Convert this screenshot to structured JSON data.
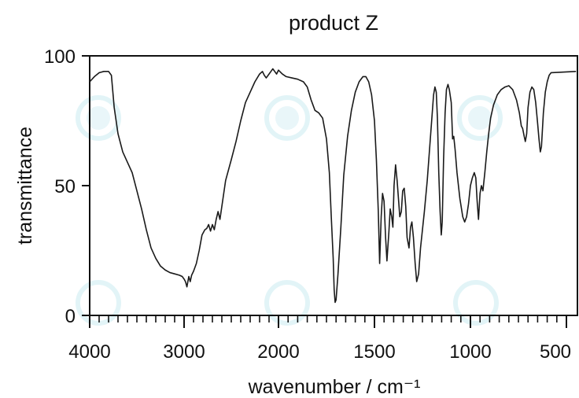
{
  "chart_data": {
    "type": "line",
    "title": "product Z",
    "xlabel": "wavenumber / cm⁻¹",
    "ylabel": "transmittance",
    "xlim": [
      4000,
      450
    ],
    "ylim": [
      0,
      100
    ],
    "x_ticks": [
      4000,
      3000,
      2000,
      1500,
      1000,
      500
    ],
    "x_tick_labels": [
      "4000",
      "3000",
      "2000",
      "1500",
      "1000",
      "500"
    ],
    "y_ticks": [
      0,
      50,
      100
    ],
    "y_tick_labels": [
      "0",
      "50",
      "100"
    ],
    "grid": false,
    "series": [
      {
        "color": "#1a1a1a",
        "points": [
          [
            4000,
            90
          ],
          [
            3950,
            92
          ],
          [
            3900,
            93.5
          ],
          [
            3850,
            94
          ],
          [
            3800,
            94
          ],
          [
            3770,
            92.5
          ],
          [
            3740,
            80
          ],
          [
            3700,
            70
          ],
          [
            3650,
            63
          ],
          [
            3600,
            59
          ],
          [
            3550,
            55
          ],
          [
            3500,
            48
          ],
          [
            3450,
            41
          ],
          [
            3400,
            33
          ],
          [
            3350,
            26
          ],
          [
            3300,
            22
          ],
          [
            3250,
            19
          ],
          [
            3200,
            17.5
          ],
          [
            3150,
            16.5
          ],
          [
            3100,
            16
          ],
          [
            3050,
            15.5
          ],
          [
            3020,
            15
          ],
          [
            3000,
            14
          ],
          [
            2985,
            13
          ],
          [
            2970,
            11
          ],
          [
            2960,
            13
          ],
          [
            2950,
            15
          ],
          [
            2935,
            13
          ],
          [
            2920,
            15.5
          ],
          [
            2900,
            17
          ],
          [
            2870,
            20
          ],
          [
            2840,
            25
          ],
          [
            2810,
            31
          ],
          [
            2780,
            33
          ],
          [
            2760,
            33.5
          ],
          [
            2740,
            35
          ],
          [
            2720,
            32.5
          ],
          [
            2700,
            35
          ],
          [
            2680,
            33
          ],
          [
            2660,
            37
          ],
          [
            2640,
            40
          ],
          [
            2620,
            37
          ],
          [
            2600,
            42
          ],
          [
            2560,
            52
          ],
          [
            2500,
            60
          ],
          [
            2450,
            67
          ],
          [
            2400,
            75
          ],
          [
            2350,
            82
          ],
          [
            2300,
            86
          ],
          [
            2250,
            90
          ],
          [
            2200,
            93
          ],
          [
            2170,
            94
          ],
          [
            2150,
            92.5
          ],
          [
            2130,
            91.5
          ],
          [
            2100,
            93
          ],
          [
            2080,
            94
          ],
          [
            2060,
            95
          ],
          [
            2040,
            94
          ],
          [
            2020,
            93
          ],
          [
            2000,
            94.5
          ],
          [
            1980,
            93
          ],
          [
            1960,
            92
          ],
          [
            1930,
            91.5
          ],
          [
            1900,
            91
          ],
          [
            1870,
            90
          ],
          [
            1850,
            88
          ],
          [
            1830,
            83
          ],
          [
            1810,
            79
          ],
          [
            1790,
            78
          ],
          [
            1770,
            76
          ],
          [
            1750,
            68
          ],
          [
            1735,
            55
          ],
          [
            1725,
            38
          ],
          [
            1715,
            22
          ],
          [
            1710,
            10
          ],
          [
            1705,
            5
          ],
          [
            1700,
            6
          ],
          [
            1690,
            16
          ],
          [
            1675,
            34
          ],
          [
            1660,
            54
          ],
          [
            1640,
            69
          ],
          [
            1620,
            79
          ],
          [
            1600,
            86
          ],
          [
            1580,
            90
          ],
          [
            1560,
            92
          ],
          [
            1545,
            92
          ],
          [
            1530,
            90
          ],
          [
            1515,
            85
          ],
          [
            1500,
            75
          ],
          [
            1490,
            60
          ],
          [
            1480,
            40
          ],
          [
            1473,
            20
          ],
          [
            1465,
            38
          ],
          [
            1458,
            47
          ],
          [
            1450,
            44
          ],
          [
            1442,
            30
          ],
          [
            1435,
            21
          ],
          [
            1425,
            32
          ],
          [
            1418,
            41
          ],
          [
            1410,
            38
          ],
          [
            1404,
            34
          ],
          [
            1398,
            50
          ],
          [
            1390,
            58
          ],
          [
            1382,
            52
          ],
          [
            1375,
            45
          ],
          [
            1368,
            38
          ],
          [
            1360,
            40
          ],
          [
            1353,
            48
          ],
          [
            1345,
            49
          ],
          [
            1337,
            42
          ],
          [
            1330,
            30
          ],
          [
            1320,
            26
          ],
          [
            1312,
            34
          ],
          [
            1305,
            36
          ],
          [
            1297,
            30
          ],
          [
            1288,
            20
          ],
          [
            1280,
            13
          ],
          [
            1270,
            16
          ],
          [
            1260,
            26
          ],
          [
            1240,
            40
          ],
          [
            1225,
            52
          ],
          [
            1210,
            67
          ],
          [
            1200,
            77
          ],
          [
            1192,
            85
          ],
          [
            1185,
            88
          ],
          [
            1178,
            86
          ],
          [
            1172,
            76
          ],
          [
            1165,
            55
          ],
          [
            1158,
            40
          ],
          [
            1152,
            31
          ],
          [
            1147,
            36
          ],
          [
            1140,
            60
          ],
          [
            1132,
            78
          ],
          [
            1125,
            87
          ],
          [
            1117,
            89
          ],
          [
            1110,
            87
          ],
          [
            1100,
            82
          ],
          [
            1093,
            68
          ],
          [
            1087,
            69
          ],
          [
            1080,
            64
          ],
          [
            1070,
            55
          ],
          [
            1055,
            45
          ],
          [
            1040,
            38
          ],
          [
            1030,
            36
          ],
          [
            1020,
            38
          ],
          [
            1010,
            43
          ],
          [
            1000,
            50
          ],
          [
            990,
            53
          ],
          [
            980,
            55
          ],
          [
            972,
            53
          ],
          [
            965,
            44
          ],
          [
            958,
            37
          ],
          [
            950,
            47
          ],
          [
            943,
            50
          ],
          [
            935,
            48
          ],
          [
            925,
            55
          ],
          [
            915,
            63
          ],
          [
            905,
            70
          ],
          [
            895,
            76
          ],
          [
            880,
            81
          ],
          [
            860,
            85
          ],
          [
            840,
            87
          ],
          [
            820,
            88
          ],
          [
            800,
            88.5
          ],
          [
            780,
            87
          ],
          [
            760,
            83
          ],
          [
            745,
            78
          ],
          [
            735,
            73
          ],
          [
            728,
            72
          ],
          [
            720,
            69
          ],
          [
            714,
            67
          ],
          [
            707,
            70
          ],
          [
            700,
            80
          ],
          [
            690,
            86
          ],
          [
            680,
            88
          ],
          [
            670,
            87
          ],
          [
            660,
            82
          ],
          [
            650,
            74
          ],
          [
            643,
            68
          ],
          [
            636,
            63
          ],
          [
            630,
            65
          ],
          [
            620,
            78
          ],
          [
            610,
            86
          ],
          [
            600,
            90
          ],
          [
            590,
            92.5
          ],
          [
            580,
            93.5
          ],
          [
            450,
            94
          ]
        ]
      }
    ]
  }
}
